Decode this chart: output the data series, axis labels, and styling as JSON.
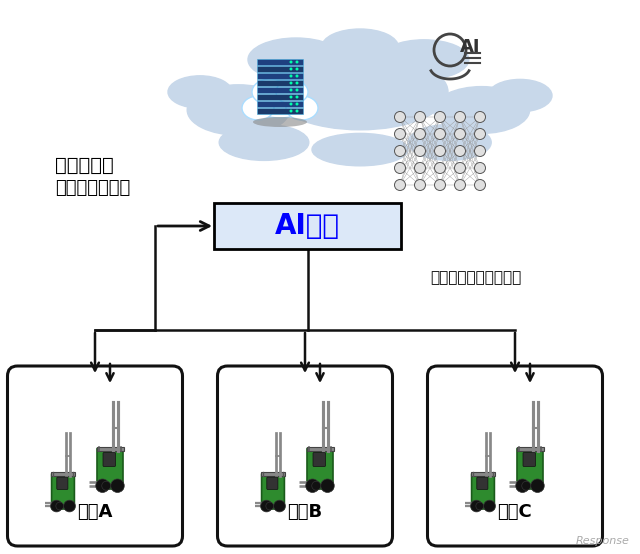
{
  "background_color": "#ffffff",
  "cloud_fill": "#c8d8ea",
  "ai_box_fill": "#dce8f8",
  "ai_box_border": "#000000",
  "ai_box_text": "AI学習",
  "ai_box_text_color": "#0000ff",
  "learning_text_line1": "学習データ",
  "learning_text_line2": "（各車両から）",
  "broadcast_text": "改良された機能を配信",
  "factory_labels": [
    "工場A",
    "工場B",
    "工場C"
  ],
  "factory_box_border": "#111111",
  "arrow_color": "#111111",
  "forklift_green": "#2e8b2e",
  "forklift_dark": "#1a5a1a",
  "forklift_black": "#111111",
  "forklift_silver": "#888888",
  "watermark": "Response",
  "nn_node_fill": "#e0e0e0",
  "nn_node_edge": "#555555",
  "nn_line_color": "#999999"
}
